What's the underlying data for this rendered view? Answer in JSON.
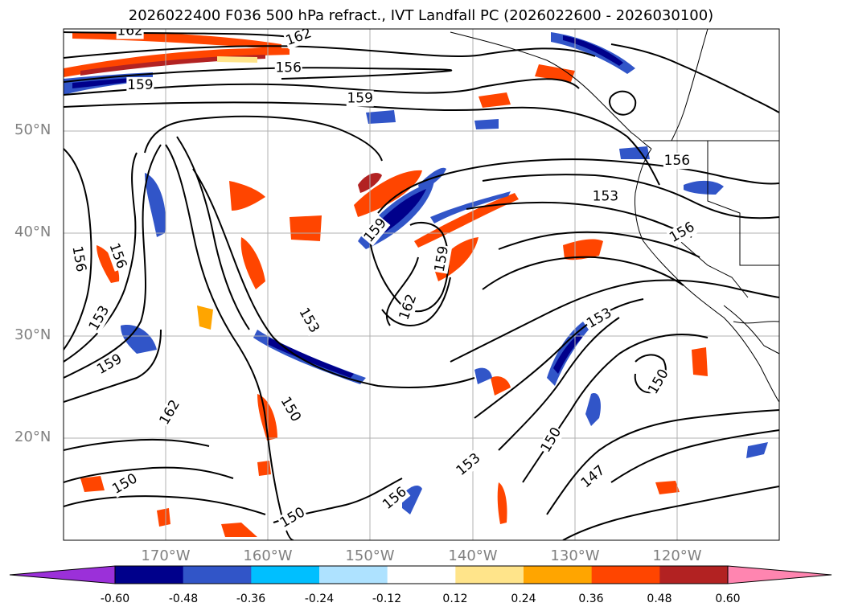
{
  "title": "2026022400 F036 500 hPa refract., IVT Landfall PC (2026022600 - 2026030100)",
  "map": {
    "projection": "lat-lon",
    "lat_range": [
      10,
      60
    ],
    "lon_range": [
      -180,
      -110
    ],
    "lat_ticks": [
      {
        "value": 50,
        "label": "50°N"
      },
      {
        "value": 40,
        "label": "40°N"
      },
      {
        "value": 30,
        "label": "30°N"
      },
      {
        "value": 20,
        "label": "20°N"
      }
    ],
    "lon_ticks": [
      {
        "value": -170,
        "label": "170°W"
      },
      {
        "value": -160,
        "label": "160°W"
      },
      {
        "value": -150,
        "label": "150°W"
      },
      {
        "value": -140,
        "label": "140°W"
      },
      {
        "value": -130,
        "label": "130°W"
      },
      {
        "value": -120,
        "label": "120°W"
      }
    ],
    "gridlines": true
  },
  "contour_labels": [
    {
      "text": "162",
      "lon": -173.5,
      "lat": 59.8,
      "angle": 0
    },
    {
      "text": "162",
      "lon": -157,
      "lat": 59.2,
      "angle": -20
    },
    {
      "text": "156",
      "lon": -158,
      "lat": 56.2,
      "angle": 0
    },
    {
      "text": "159",
      "lon": -172.5,
      "lat": 54.5,
      "angle": 0
    },
    {
      "text": "159",
      "lon": -151,
      "lat": 53.2,
      "angle": 0
    },
    {
      "text": "156",
      "lon": -178.5,
      "lat": 37.5,
      "angle": 80
    },
    {
      "text": "156",
      "lon": -174.7,
      "lat": 37.8,
      "angle": 70
    },
    {
      "text": "153",
      "lon": -176.5,
      "lat": 31.7,
      "angle": -60
    },
    {
      "text": "159",
      "lon": -175.5,
      "lat": 27.2,
      "angle": -30
    },
    {
      "text": "162",
      "lon": -169.6,
      "lat": 22.5,
      "angle": -60
    },
    {
      "text": "150",
      "lon": -174,
      "lat": 15.5,
      "angle": -30
    },
    {
      "text": "153",
      "lon": -156,
      "lat": 31.5,
      "angle": 60
    },
    {
      "text": "150",
      "lon": -157.8,
      "lat": 22.8,
      "angle": 60
    },
    {
      "text": "150",
      "lon": -157.6,
      "lat": 12.2,
      "angle": -30
    },
    {
      "text": "159",
      "lon": -149.5,
      "lat": 40.3,
      "angle": -50
    },
    {
      "text": "162",
      "lon": -146.3,
      "lat": 32.8,
      "angle": -70
    },
    {
      "text": "159",
      "lon": -143,
      "lat": 37.5,
      "angle": -80
    },
    {
      "text": "156",
      "lon": -147.6,
      "lat": 14.1,
      "angle": -40
    },
    {
      "text": "153",
      "lon": -140.4,
      "lat": 17.4,
      "angle": -40
    },
    {
      "text": "153",
      "lon": -127,
      "lat": 43.6,
      "angle": 0
    },
    {
      "text": "156",
      "lon": -120,
      "lat": 47.1,
      "angle": 0
    },
    {
      "text": "156",
      "lon": -119.5,
      "lat": 40.1,
      "angle": -30
    },
    {
      "text": "153",
      "lon": -127.6,
      "lat": 31.7,
      "angle": -30
    },
    {
      "text": "150",
      "lon": -121.8,
      "lat": 25.5,
      "angle": -60
    },
    {
      "text": "150",
      "lon": -132.3,
      "lat": 19.8,
      "angle": -60
    },
    {
      "text": "147",
      "lon": -128.2,
      "lat": 16.2,
      "angle": -40
    }
  ],
  "colorbar": {
    "ticks": [
      "-0.60",
      "-0.48",
      "-0.36",
      "-0.24",
      "-0.12",
      "0.12",
      "0.24",
      "0.36",
      "0.48",
      "0.60"
    ],
    "colors": [
      "#9b30d9",
      "#00008b",
      "#3155c8",
      "#00bfff",
      "#aee2ff",
      "#ffffff",
      "#ffe48a",
      "#ffa500",
      "#ff4500",
      "#b22222",
      "#ff85b0"
    ],
    "extend": "both"
  }
}
